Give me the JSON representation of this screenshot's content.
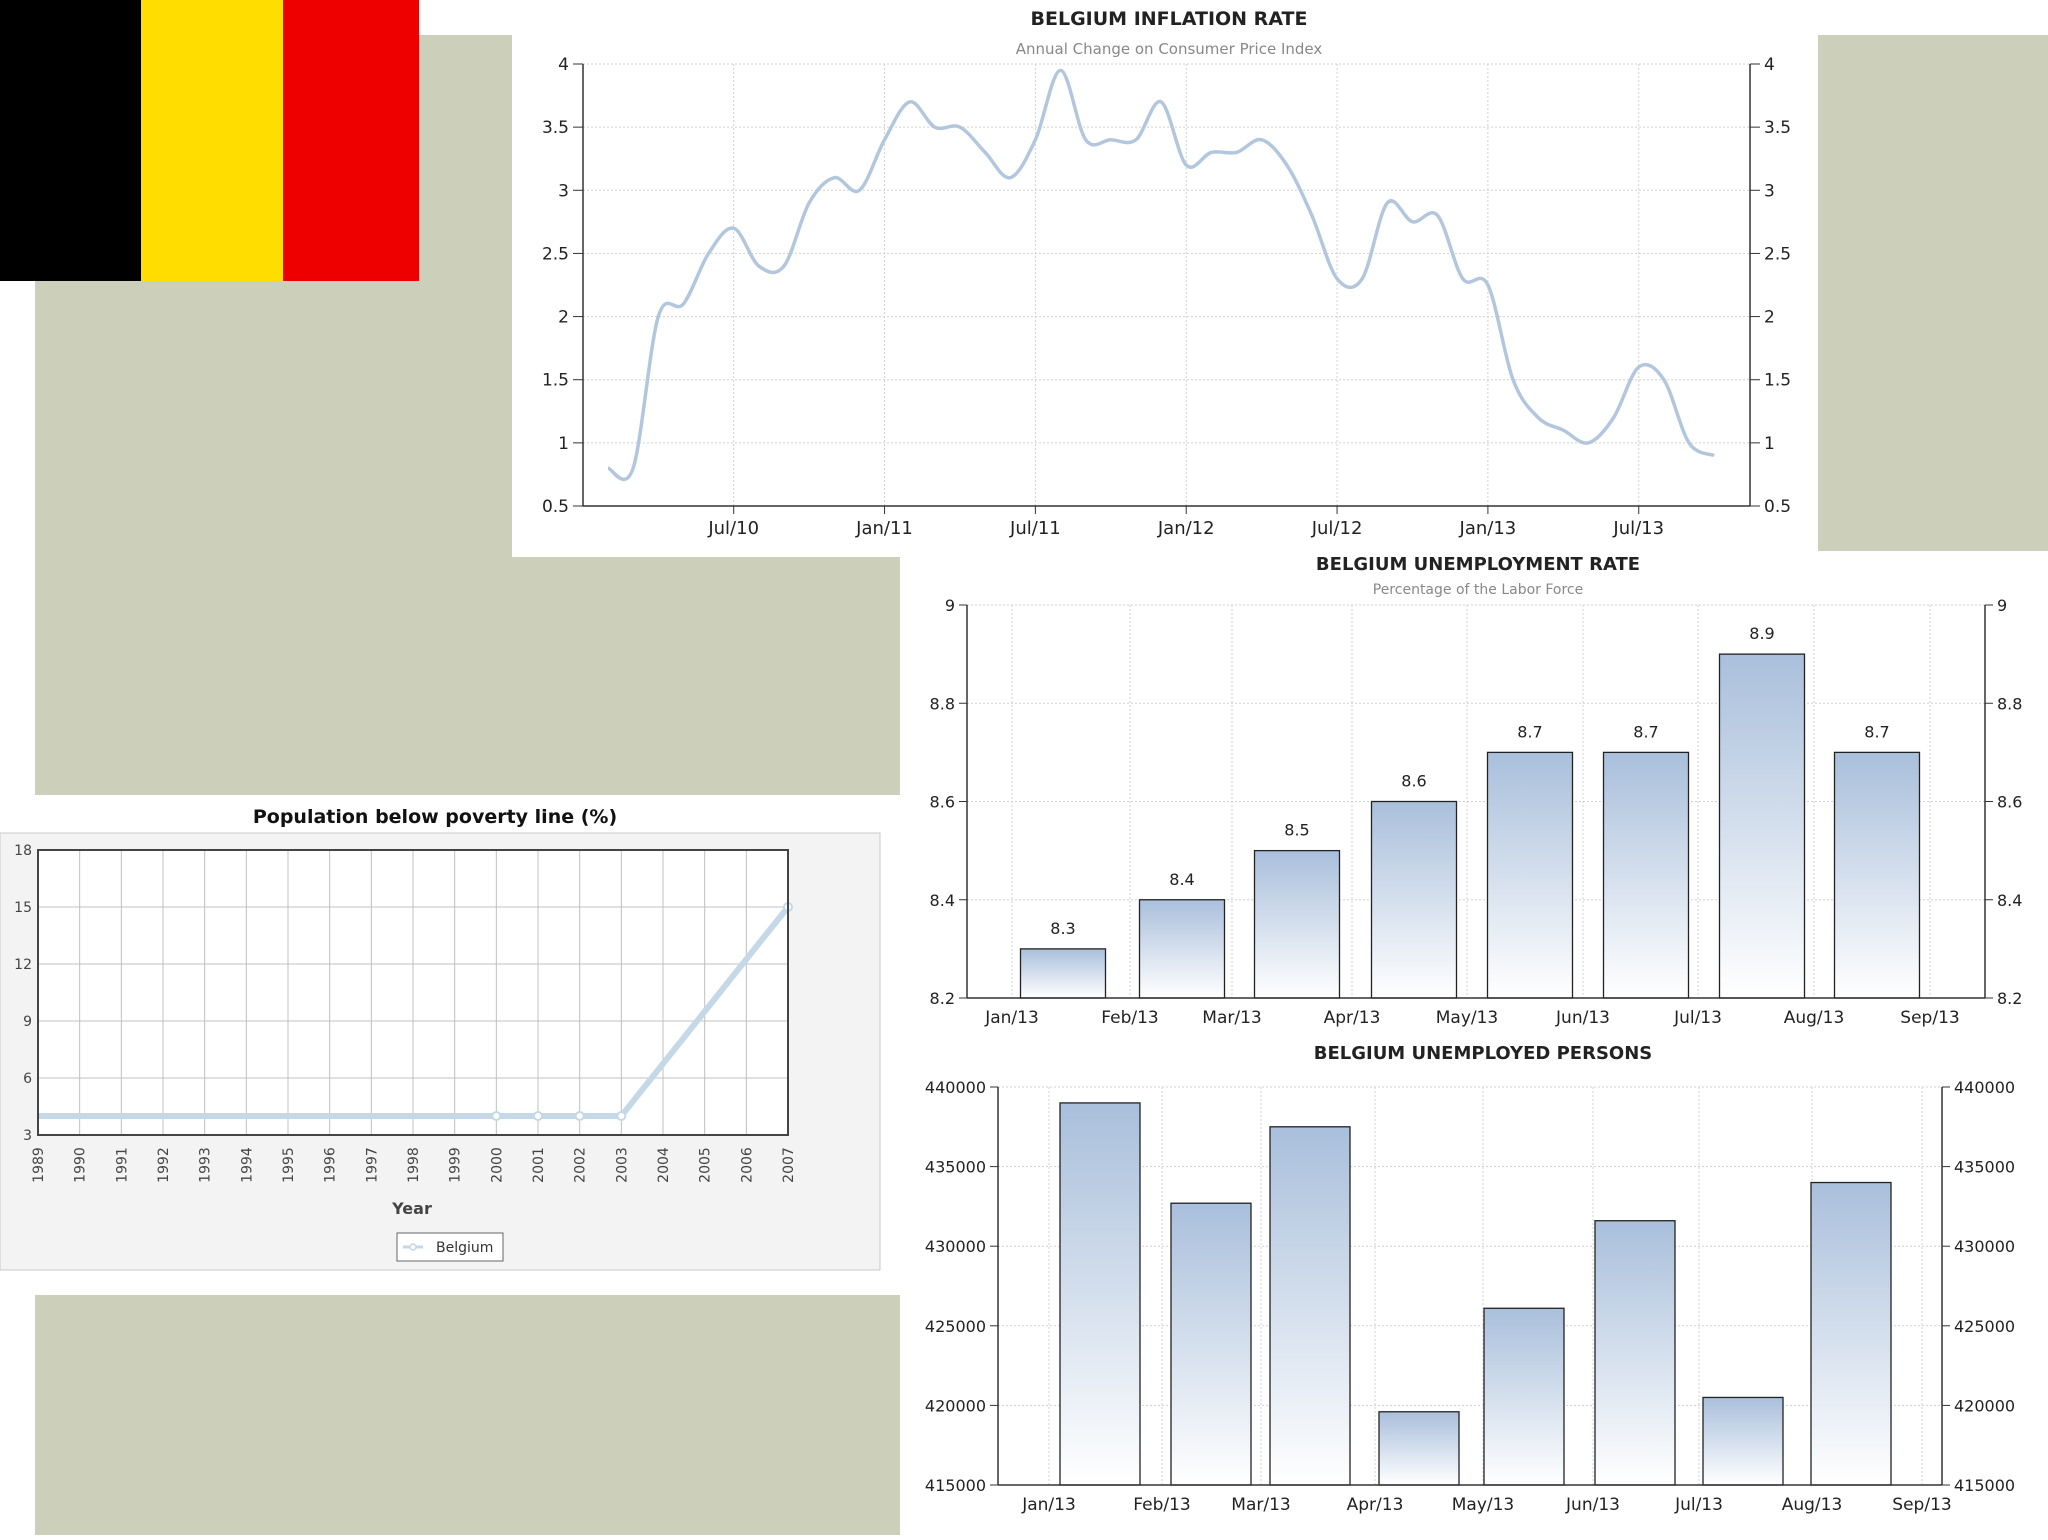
{
  "colors": {
    "flag_black": "#000000",
    "flag_yellow": "#ffdd00",
    "flag_red": "#ee0000",
    "backdrop": "#cccfb9",
    "series_line": "#b2c7dd",
    "bar_top": "#a9bfdb",
    "bar_bottom": "#ffffff",
    "poverty_line": "#c4d8e8"
  },
  "flag": {
    "name": "Belgium"
  },
  "chart_data": [
    {
      "id": "inflation",
      "type": "line",
      "title": "BELGIUM INFLATION RATE",
      "subtitle": "Annual Change on Consumer Price Index",
      "x_tick_labels": [
        "Jul/10",
        "Jan/11",
        "Jul/11",
        "Jan/12",
        "Jul/12",
        "Jan/13",
        "Jul/13"
      ],
      "y_tick_labels": [
        "0.5",
        "1",
        "1.5",
        "2",
        "2.5",
        "3",
        "3.5",
        "4"
      ],
      "ylim": [
        0.5,
        4
      ],
      "x_start": "Feb/10",
      "x_step": "1 month",
      "values": [
        0.8,
        0.8,
        2.0,
        2.1,
        2.5,
        2.7,
        2.4,
        2.4,
        2.9,
        3.1,
        3.0,
        3.4,
        3.7,
        3.5,
        3.5,
        3.3,
        3.1,
        3.4,
        3.95,
        3.4,
        3.4,
        3.4,
        3.7,
        3.2,
        3.3,
        3.3,
        3.4,
        3.2,
        2.8,
        2.3,
        2.3,
        2.9,
        2.75,
        2.8,
        2.3,
        2.25,
        1.5,
        1.2,
        1.1,
        1.0,
        1.2,
        1.6,
        1.5,
        1.0,
        0.9
      ],
      "grid": true
    },
    {
      "id": "unemployment_rate",
      "type": "bar",
      "title": "BELGIUM UNEMPLOYMENT RATE",
      "subtitle": "Percentage of the Labor Force",
      "x_tick_labels": [
        "Jan/13",
        "Feb/13",
        "Mar/13",
        "Apr/13",
        "May/13",
        "Jun/13",
        "Jul/13",
        "Aug/13",
        "Sep/13"
      ],
      "categories": [
        "Jan/13",
        "Feb/13",
        "Mar/13",
        "Apr/13",
        "May/13",
        "Jun/13",
        "Jul/13",
        "Aug/13"
      ],
      "values": [
        8.3,
        8.4,
        8.5,
        8.6,
        8.7,
        8.7,
        8.9,
        8.7
      ],
      "data_labels": [
        "8.3",
        "8.4",
        "8.5",
        "8.6",
        "8.7",
        "8.7",
        "8.9",
        "8.7"
      ],
      "y_tick_labels": [
        "8.2",
        "8.4",
        "8.6",
        "8.8",
        "9"
      ],
      "ylim": [
        8.2,
        9
      ],
      "grid": true
    },
    {
      "id": "unemployed_persons",
      "type": "bar",
      "title": "BELGIUM UNEMPLOYED PERSONS",
      "x_tick_labels": [
        "Jan/13",
        "Feb/13",
        "Mar/13",
        "Apr/13",
        "May/13",
        "Jun/13",
        "Jul/13",
        "Aug/13",
        "Sep/13"
      ],
      "categories": [
        "Jan/13",
        "Feb/13",
        "Mar/13",
        "Apr/13",
        "May/13",
        "Jun/13",
        "Jul/13",
        "Aug/13"
      ],
      "values": [
        439000,
        432700,
        437500,
        419600,
        426100,
        431600,
        420500,
        434000
      ],
      "y_tick_labels": [
        "415000",
        "420000",
        "425000",
        "430000",
        "435000",
        "440000"
      ],
      "ylim": [
        415000,
        440000
      ],
      "grid": true
    },
    {
      "id": "poverty",
      "type": "line",
      "title": "Population below poverty line (%)",
      "xlabel": "Year",
      "categories": [
        "1989",
        "1990",
        "1991",
        "1992",
        "1993",
        "1994",
        "1995",
        "1996",
        "1997",
        "1998",
        "1999",
        "2000",
        "2001",
        "2002",
        "2003",
        "2004",
        "2005",
        "2006",
        "2007"
      ],
      "series": [
        {
          "name": "Belgium",
          "values": [
            4,
            4,
            4,
            4,
            4,
            4,
            4,
            4,
            4,
            4,
            4,
            4,
            4,
            4,
            4,
            6.75,
            9.5,
            12.25,
            15
          ]
        }
      ],
      "marker_years": [
        "2000",
        "2001",
        "2002",
        "2003",
        "2007"
      ],
      "y_tick_labels": [
        "3",
        "6",
        "9",
        "12",
        "15",
        "18"
      ],
      "ylim": [
        3,
        18
      ],
      "legend_position": "bottom",
      "grid": true
    }
  ]
}
